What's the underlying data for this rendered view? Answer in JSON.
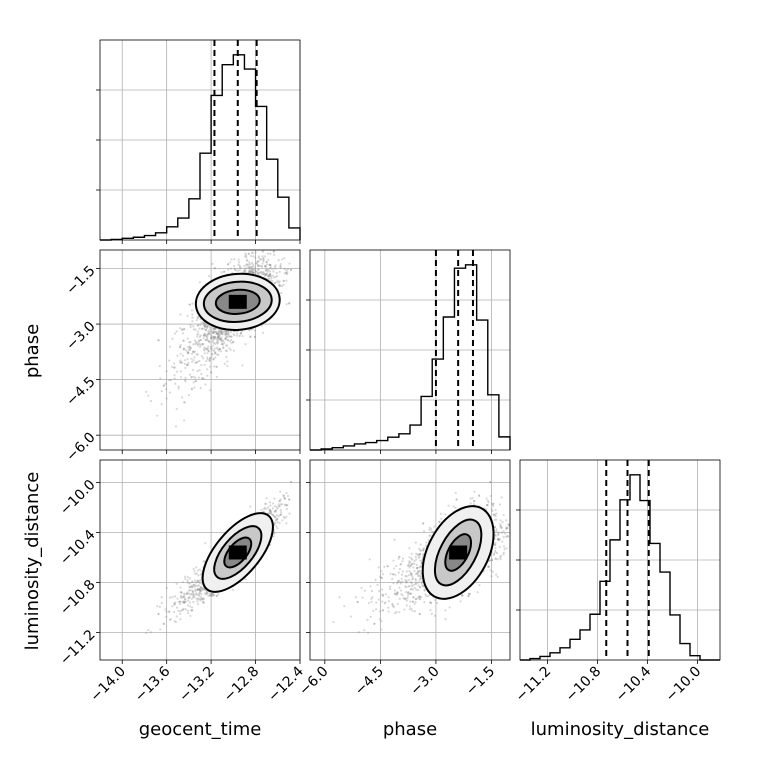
{
  "chart_data": {
    "type": "corner",
    "parameters": [
      "geocent_time",
      "phase",
      "luminosity_distance"
    ],
    "axis_labels": {
      "geocent_time": "geocent_time",
      "phase": "phase",
      "luminosity_distance": "luminosity_distance"
    },
    "ranges": {
      "geocent_time": [
        -14.2,
        -12.4
      ],
      "phase": [
        -6.4,
        -1.0
      ],
      "luminosity_distance": [
        -11.42,
        -9.82
      ]
    },
    "ticks": {
      "geocent_time": [
        -14.0,
        -13.6,
        -13.2,
        -12.8,
        -12.4
      ],
      "phase": [
        -6.0,
        -4.5,
        -3.0,
        -1.5
      ],
      "luminosity_distance": [
        -11.2,
        -10.8,
        -10.4,
        -10.0
      ]
    },
    "tick_labels": {
      "geocent_time": [
        "−14.0",
        "−13.6",
        "−13.2",
        "−12.8",
        "−12.4"
      ],
      "phase": [
        "−6.0",
        "−4.5",
        "−3.0",
        "−1.5"
      ],
      "luminosity_distance": [
        "−11.2",
        "−10.8",
        "−10.4",
        "−10.0"
      ]
    },
    "grid": true,
    "histograms": {
      "geocent_time": {
        "bins": [
          -14.2,
          -14.1,
          -14.0,
          -13.9,
          -13.8,
          -13.7,
          -13.6,
          -13.5,
          -13.4,
          -13.3,
          -13.2,
          -13.1,
          -13.0,
          -12.9,
          -12.8,
          -12.7,
          -12.6,
          -12.5,
          -12.4
        ],
        "counts": [
          0,
          1,
          3,
          5,
          8,
          13,
          24,
          40,
          75,
          158,
          263,
          319,
          337,
          311,
          243,
          147,
          78,
          22
        ]
      },
      "phase": {
        "bins": [
          -6.4,
          -6.1,
          -5.8,
          -5.5,
          -5.2,
          -4.9,
          -4.6,
          -4.3,
          -4.0,
          -3.7,
          -3.4,
          -3.1,
          -2.8,
          -2.5,
          -2.2,
          -1.9,
          -1.6,
          -1.3,
          -1.0
        ],
        "counts": [
          0,
          3,
          7,
          12,
          18,
          22,
          28,
          38,
          48,
          74,
          159,
          270,
          395,
          540,
          550,
          386,
          164,
          39
        ]
      },
      "luminosity_distance": {
        "bins": [
          -11.42,
          -11.34,
          -11.26,
          -11.18,
          -11.1,
          -11.02,
          -10.94,
          -10.86,
          -10.78,
          -10.7,
          -10.62,
          -10.54,
          -10.46,
          -10.38,
          -10.3,
          -10.22,
          -10.14,
          -10.06,
          -9.98,
          -9.9,
          -9.82
        ],
        "counts": [
          0,
          2,
          5,
          10,
          17,
          29,
          42,
          64,
          110,
          168,
          224,
          259,
          223,
          163,
          123,
          63,
          23,
          6,
          0,
          0
        ]
      }
    },
    "quantiles": {
      "geocent_time": [
        -13.17,
        -12.96,
        -12.79
      ],
      "phase": [
        -3.0,
        -2.4,
        -2.0
      ],
      "luminosity_distance": [
        -10.73,
        -10.56,
        -10.39
      ]
    },
    "scatter_samples": 2200
  }
}
